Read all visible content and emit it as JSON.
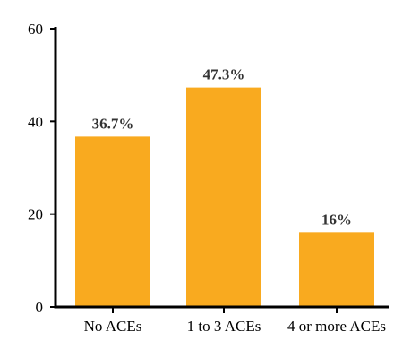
{
  "chart_data": {
    "type": "bar",
    "categories": [
      "No ACEs",
      "1 to 3 ACEs",
      "4 or more ACEs"
    ],
    "values": [
      36.7,
      47.3,
      16
    ],
    "data_labels": [
      "36.7%",
      "47.3%",
      "16%"
    ],
    "title": "",
    "xlabel": "",
    "ylabel": "",
    "ylim": [
      0,
      60
    ],
    "yticks": [
      0,
      20,
      40,
      60
    ],
    "ytick_labels": [
      "0",
      "20",
      "40",
      "60"
    ],
    "grid": false,
    "legend": "none",
    "bar_color": "#F9AA1F",
    "axis_color": "#000000"
  }
}
